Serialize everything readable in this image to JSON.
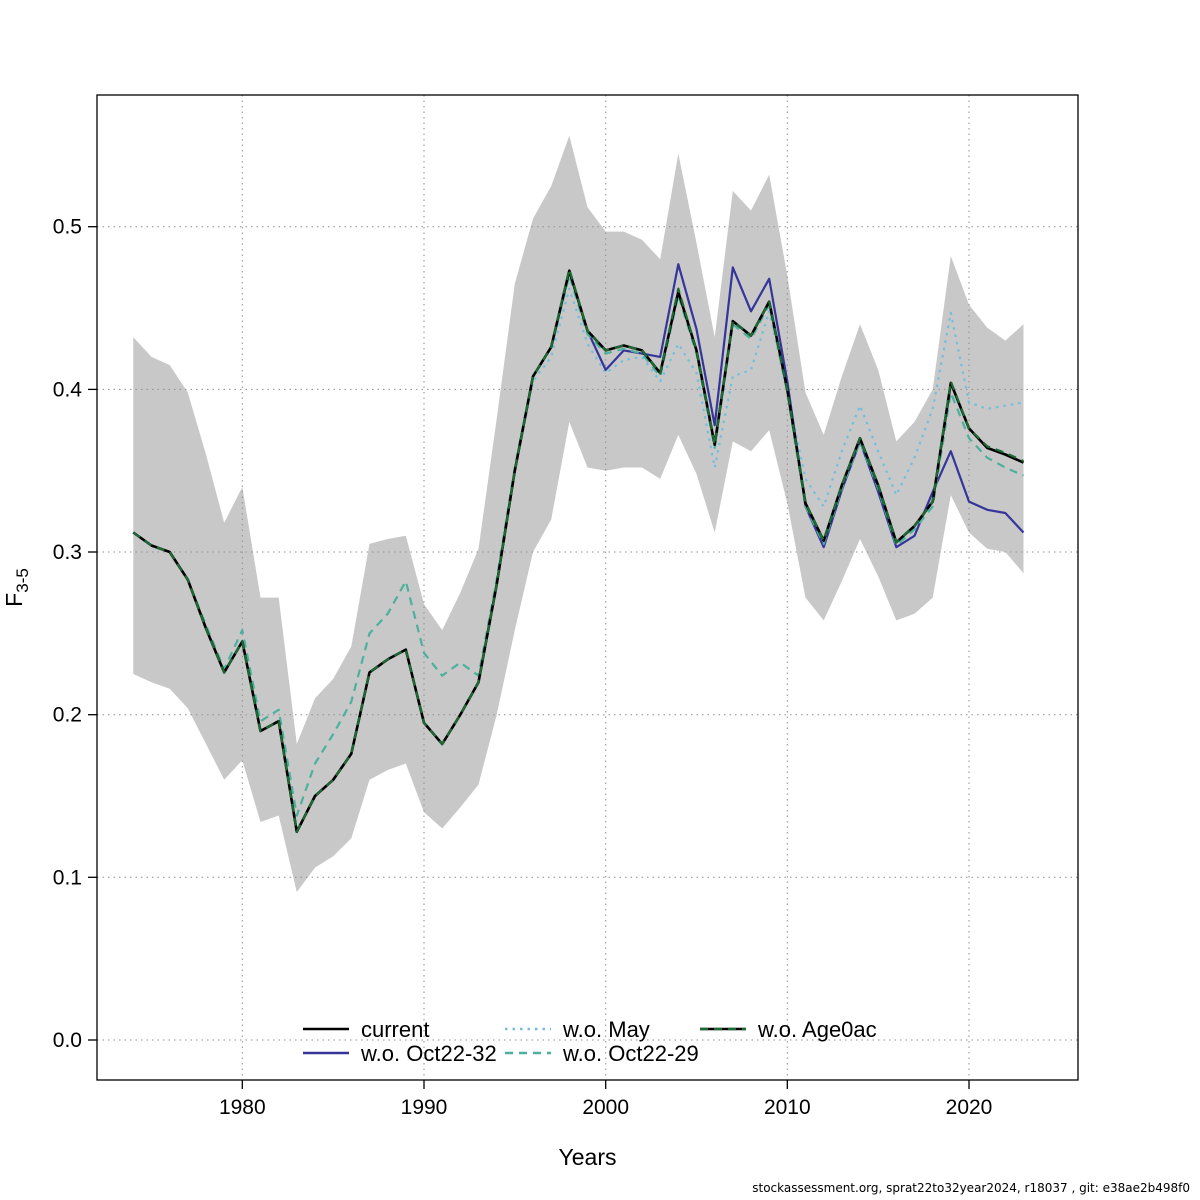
{
  "footer": {
    "text": "stockassessment.org, sprat22to32year2024, r18037 , git: e38ae2b498f0"
  },
  "chart_data": {
    "type": "line",
    "title": "",
    "xlabel": "Years",
    "ylabel": {
      "base": "F",
      "sub": "3-5"
    },
    "xlim": [
      1972,
      2026
    ],
    "ylim": [
      -0.0246,
      0.581
    ],
    "x_ticks": [
      1980,
      1990,
      2000,
      2010,
      2020
    ],
    "y_ticks": [
      0,
      0.1,
      0.2,
      0.3,
      0.4,
      0.5
    ],
    "y_tick_labels": [
      "0.0",
      "0.1",
      "0.2",
      "0.3",
      "0.4",
      "0.5"
    ],
    "grid": true,
    "grid_color": "#8f8f8f",
    "x": [
      1974,
      1975,
      1976,
      1977,
      1978,
      1979,
      1980,
      1981,
      1982,
      1983,
      1984,
      1985,
      1986,
      1987,
      1988,
      1989,
      1990,
      1991,
      1992,
      1993,
      1994,
      1995,
      1996,
      1997,
      1998,
      1999,
      2000,
      2001,
      2002,
      2003,
      2004,
      2005,
      2006,
      2007,
      2008,
      2009,
      2010,
      2011,
      2012,
      2013,
      2014,
      2015,
      2016,
      2017,
      2018,
      2019,
      2020,
      2021,
      2022,
      2023
    ],
    "band": {
      "color": "#c8c8c8",
      "low": [
        0.225,
        0.22,
        0.216,
        0.204,
        0.182,
        0.16,
        0.172,
        0.134,
        0.138,
        0.091,
        0.106,
        0.113,
        0.124,
        0.16,
        0.166,
        0.17,
        0.14,
        0.13,
        0.143,
        0.157,
        0.2,
        0.252,
        0.3,
        0.32,
        0.38,
        0.352,
        0.35,
        0.352,
        0.352,
        0.345,
        0.372,
        0.348,
        0.312,
        0.368,
        0.362,
        0.375,
        0.33,
        0.272,
        0.258,
        0.282,
        0.308,
        0.285,
        0.258,
        0.262,
        0.272,
        0.335,
        0.312,
        0.302,
        0.3,
        0.287
      ],
      "high": [
        0.432,
        0.42,
        0.415,
        0.398,
        0.36,
        0.318,
        0.34,
        0.272,
        0.272,
        0.182,
        0.21,
        0.222,
        0.242,
        0.305,
        0.308,
        0.31,
        0.268,
        0.252,
        0.275,
        0.302,
        0.382,
        0.465,
        0.505,
        0.525,
        0.556,
        0.512,
        0.497,
        0.497,
        0.492,
        0.48,
        0.545,
        0.49,
        0.432,
        0.522,
        0.51,
        0.532,
        0.47,
        0.398,
        0.372,
        0.408,
        0.44,
        0.412,
        0.368,
        0.38,
        0.4,
        0.482,
        0.452,
        0.438,
        0.43,
        0.44
      ]
    },
    "series": [
      {
        "id": "current",
        "name": "current",
        "color": "#000000",
        "style": "solid",
        "width": 2.6,
        "values": [
          0.312,
          0.304,
          0.3,
          0.283,
          0.253,
          0.226,
          0.245,
          0.19,
          0.196,
          0.128,
          0.15,
          0.16,
          0.176,
          0.226,
          0.234,
          0.24,
          0.195,
          0.182,
          0.2,
          0.22,
          0.28,
          0.35,
          0.408,
          0.426,
          0.473,
          0.436,
          0.424,
          0.427,
          0.424,
          0.41,
          0.46,
          0.424,
          0.366,
          0.442,
          0.433,
          0.454,
          0.4,
          0.33,
          0.307,
          0.341,
          0.37,
          0.341,
          0.306,
          0.316,
          0.331,
          0.404,
          0.376,
          0.364,
          0.36,
          0.355
        ]
      },
      {
        "id": "wo-oct22-32",
        "name": "w.o. Oct22-32",
        "color": "#35359b",
        "style": "solid",
        "width": 2.2,
        "values": [
          0.312,
          0.304,
          0.3,
          0.283,
          0.253,
          0.226,
          0.245,
          0.19,
          0.196,
          0.128,
          0.15,
          0.16,
          0.176,
          0.226,
          0.234,
          0.24,
          0.195,
          0.182,
          0.2,
          0.22,
          0.28,
          0.35,
          0.408,
          0.426,
          0.473,
          0.436,
          0.412,
          0.424,
          0.422,
          0.42,
          0.477,
          0.437,
          0.378,
          0.475,
          0.448,
          0.468,
          0.405,
          0.328,
          0.303,
          0.338,
          0.368,
          0.337,
          0.303,
          0.31,
          0.337,
          0.362,
          0.331,
          0.326,
          0.324,
          0.312
        ]
      },
      {
        "id": "wo-may",
        "name": "w.o. May",
        "color": "#74bedd",
        "style": "dotted",
        "width": 2.2,
        "values": [
          0.312,
          0.304,
          0.3,
          0.283,
          0.253,
          0.226,
          0.245,
          0.19,
          0.196,
          0.128,
          0.15,
          0.16,
          0.176,
          0.226,
          0.234,
          0.24,
          0.195,
          0.182,
          0.2,
          0.22,
          0.28,
          0.35,
          0.405,
          0.42,
          0.462,
          0.428,
          0.41,
          0.418,
          0.42,
          0.405,
          0.428,
          0.41,
          0.352,
          0.408,
          0.412,
          0.448,
          0.398,
          0.345,
          0.328,
          0.362,
          0.39,
          0.362,
          0.335,
          0.358,
          0.388,
          0.447,
          0.392,
          0.388,
          0.39,
          0.392
        ]
      },
      {
        "id": "wo-oct22-29",
        "name": "w.o. Oct22-29",
        "color": "#4cb09c",
        "style": "dashed",
        "width": 2.2,
        "values": [
          0.312,
          0.304,
          0.3,
          0.283,
          0.255,
          0.228,
          0.252,
          0.196,
          0.203,
          0.138,
          0.17,
          0.188,
          0.208,
          0.25,
          0.262,
          0.282,
          0.238,
          0.224,
          0.232,
          0.224,
          0.283,
          0.352,
          0.408,
          0.426,
          0.47,
          0.434,
          0.422,
          0.425,
          0.422,
          0.408,
          0.458,
          0.422,
          0.364,
          0.44,
          0.431,
          0.452,
          0.398,
          0.328,
          0.305,
          0.339,
          0.368,
          0.339,
          0.304,
          0.314,
          0.328,
          0.398,
          0.37,
          0.358,
          0.352,
          0.347
        ]
      },
      {
        "id": "wo-age0ac",
        "name": "w.o. Age0ac",
        "color": "#1d6b33",
        "style": "dashed",
        "width": 2.2,
        "under_color": "#000000",
        "values": [
          0.312,
          0.304,
          0.3,
          0.283,
          0.253,
          0.226,
          0.245,
          0.19,
          0.196,
          0.128,
          0.15,
          0.16,
          0.176,
          0.226,
          0.234,
          0.24,
          0.195,
          0.182,
          0.2,
          0.22,
          0.28,
          0.35,
          0.408,
          0.426,
          0.474,
          0.436,
          0.424,
          0.427,
          0.424,
          0.41,
          0.462,
          0.424,
          0.366,
          0.442,
          0.433,
          0.454,
          0.4,
          0.33,
          0.307,
          0.341,
          0.37,
          0.341,
          0.306,
          0.316,
          0.331,
          0.405,
          0.376,
          0.365,
          0.361,
          0.356
        ]
      }
    ],
    "draw_order": [
      2,
      1,
      3,
      0,
      4
    ],
    "legend": {
      "position": "bottom-center-inside",
      "ncol": 3,
      "order": [
        "current",
        "w.o. Oct22-32",
        "w.o. May",
        "w.o. Oct22-29",
        "w.o. Age0ac"
      ]
    }
  }
}
